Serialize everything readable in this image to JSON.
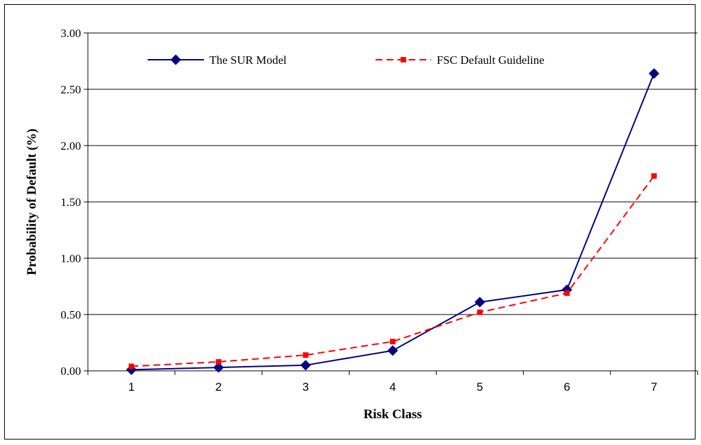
{
  "chart_data": {
    "type": "line",
    "title": "",
    "xlabel": "Risk Class",
    "ylabel": "Probability of Default (%)",
    "categories": [
      "1",
      "2",
      "3",
      "4",
      "5",
      "6",
      "7"
    ],
    "ylim": [
      0,
      3
    ],
    "yticks": [
      "0.00",
      "0.50",
      "1.00",
      "1.50",
      "2.00",
      "2.50",
      "3.00"
    ],
    "grid": "horizontal",
    "legend_position": "top",
    "series": [
      {
        "name": "The SUR Model",
        "values": [
          0.01,
          0.03,
          0.05,
          0.18,
          0.61,
          0.72,
          2.64
        ],
        "color": "#000080",
        "marker": "diamond",
        "line": "solid"
      },
      {
        "name": "FSC Default Guideline",
        "values": [
          0.04,
          0.08,
          0.14,
          0.26,
          0.52,
          0.69,
          1.73
        ],
        "color": "#ff0000",
        "marker": "square",
        "line": "dashed"
      }
    ]
  }
}
